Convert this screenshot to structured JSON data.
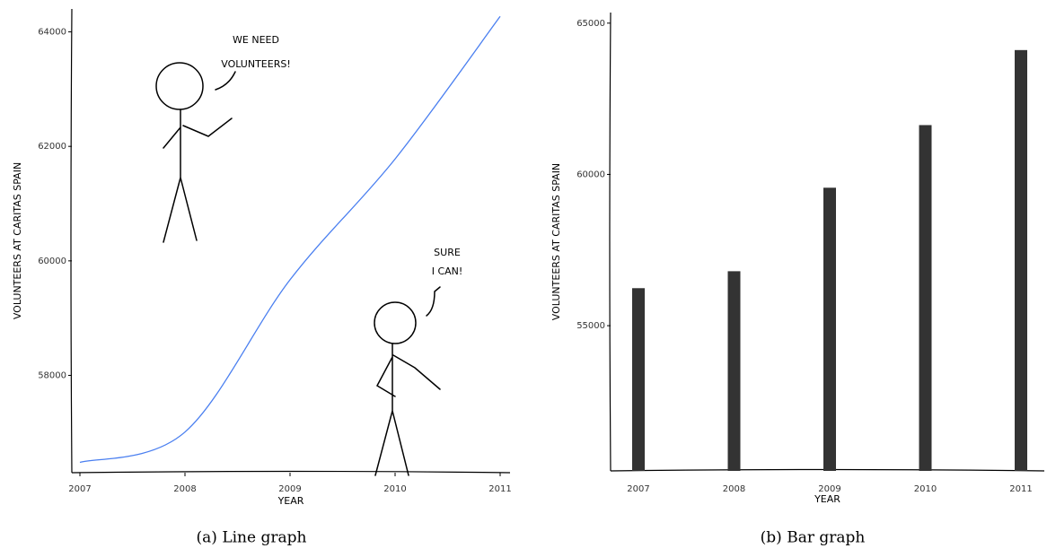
{
  "chart_data": [
    {
      "type": "line",
      "caption": "(a) Line graph",
      "xlabel": "YEAR",
      "ylabel": "VOLUNTEERS AT CARITAS SPAIN",
      "x": [
        2007,
        2008,
        2009,
        2010,
        2011
      ],
      "values": [
        56480,
        57010,
        59670,
        61780,
        64270
      ],
      "color": "#4a7ff0",
      "xlim": [
        2007,
        2011
      ],
      "xticks": [
        2007,
        2008,
        2009,
        2010,
        2011
      ],
      "ylim": [
        56300,
        64400
      ],
      "yticks": [
        58000,
        60000,
        62000,
        64000
      ],
      "annotations": [
        [
          "WE NEED",
          "VOLUNTEERS!"
        ],
        [
          "SURE",
          "I CAN!"
        ]
      ]
    },
    {
      "type": "bar",
      "caption": "(b) Bar graph",
      "xlabel": "YEAR",
      "ylabel": "VOLUNTEERS AT CARITAS SPAIN",
      "categories": [
        "2007",
        "2008",
        "2009",
        "2010",
        "2011"
      ],
      "values": [
        56240,
        56800,
        59560,
        61630,
        64110
      ],
      "color": "#333333",
      "ylim": [
        50200,
        65350
      ],
      "yticks": [
        55000,
        60000,
        65000
      ]
    }
  ]
}
